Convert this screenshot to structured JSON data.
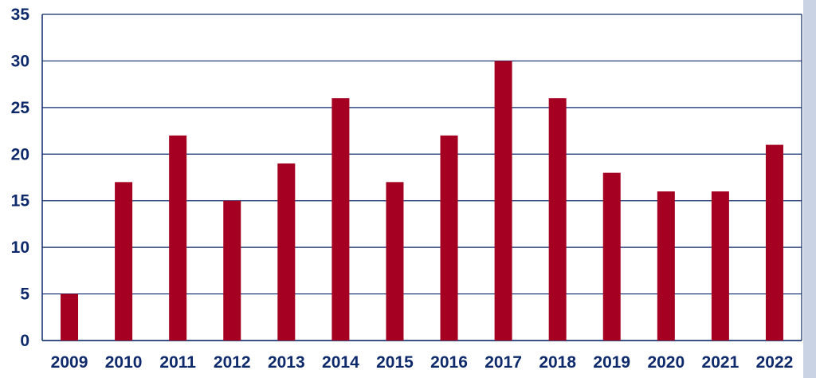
{
  "chart_data": {
    "type": "bar",
    "title": "",
    "xlabel": "",
    "ylabel": "",
    "categories": [
      "2009",
      "2010",
      "2011",
      "2012",
      "2013",
      "2014",
      "2015",
      "2016",
      "2017",
      "2018",
      "2019",
      "2020",
      "2021",
      "2022"
    ],
    "values": [
      5,
      17,
      22,
      15,
      19,
      26,
      17,
      22,
      30,
      26,
      18,
      16,
      16,
      21
    ],
    "ylim": [
      0,
      35
    ],
    "yticks": [
      0,
      5,
      10,
      15,
      20,
      25,
      30,
      35
    ],
    "ytick_labels": [
      "0",
      "5",
      "10",
      "15",
      "20",
      "25",
      "30",
      "35"
    ],
    "grid": true,
    "legend": "none",
    "colors": {
      "bar": "#A50021",
      "grid": "#0E2A6B",
      "axis": "#0E2A6B",
      "text": "#0E2A6B",
      "frame": "#0E2A6B",
      "edge_shade": "#C9D3E3"
    }
  }
}
